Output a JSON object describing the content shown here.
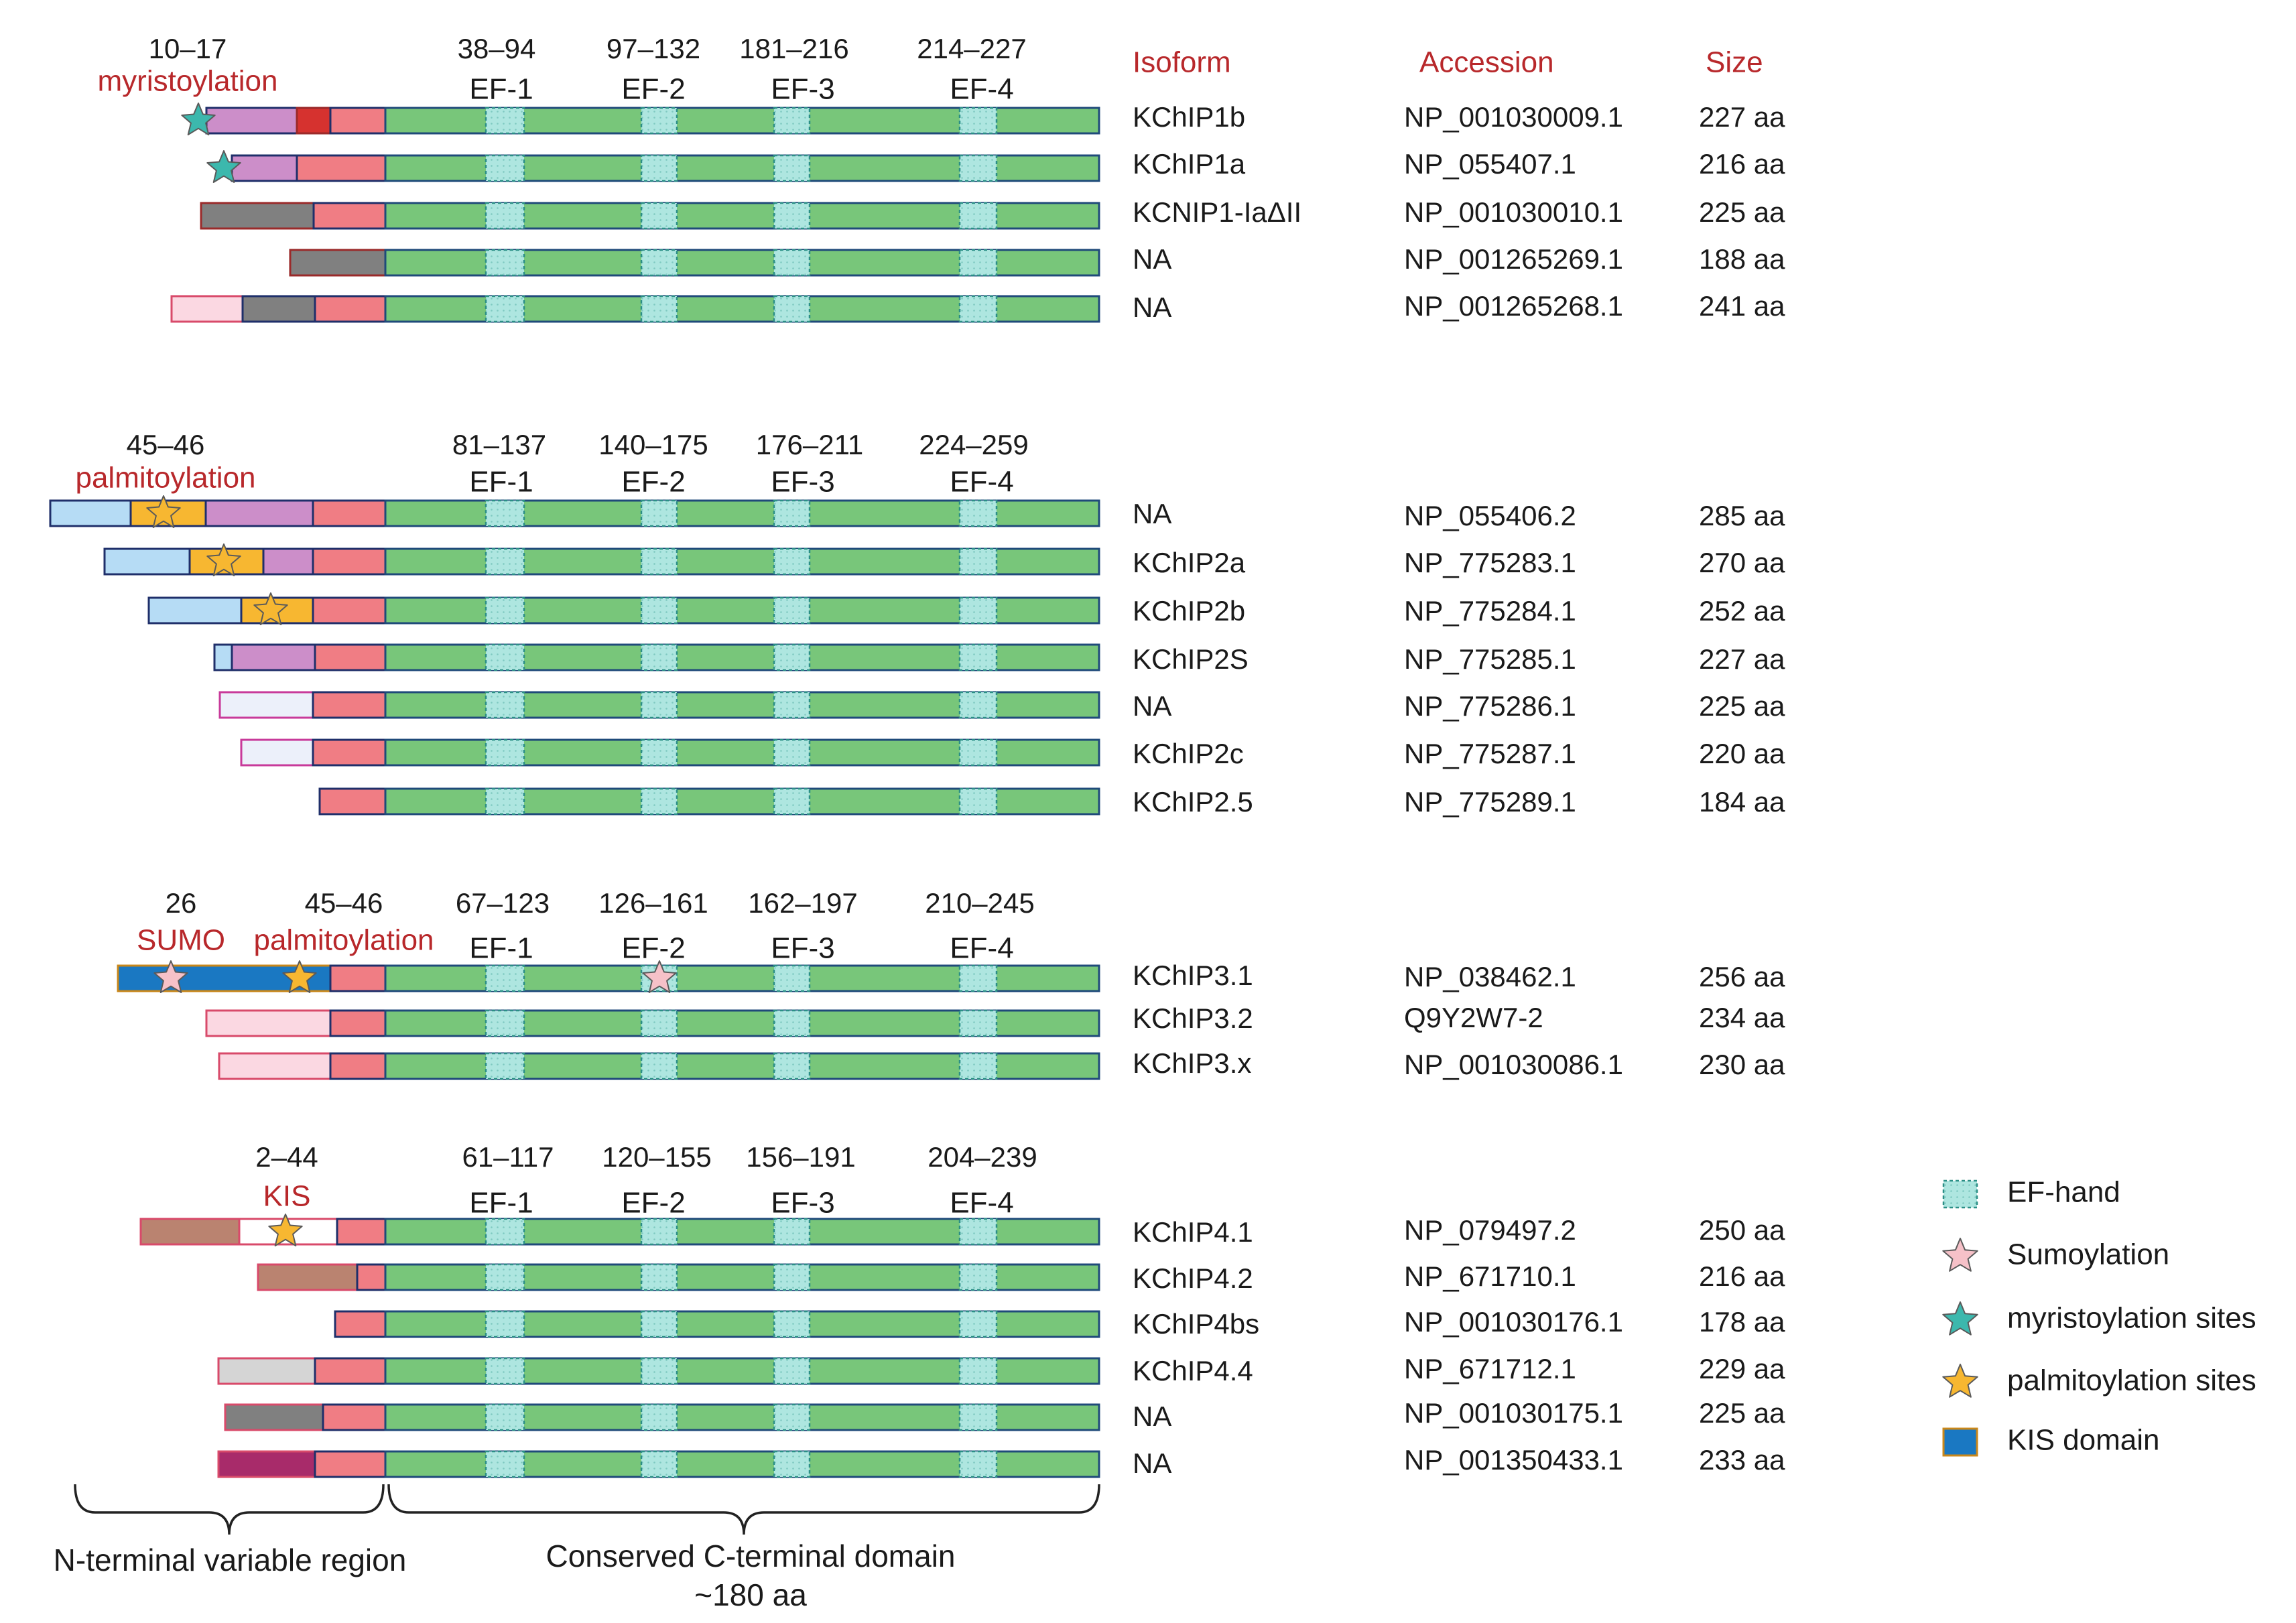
{
  "colors": {
    "red_label": "#b8282b",
    "text": "#1a1a1a",
    "green": "#78c67a",
    "ef_hand": "#aee6e0",
    "outline": "#1f4a7a",
    "salmon": "#f07d84",
    "teal_star": "#3cb8ad",
    "orange_star": "#f7b731",
    "pink_star": "#f6c1c8",
    "kis_blue": "#1a78c2",
    "mauve": "#cc8ec9",
    "red_small": "#d6322f",
    "gray": "#808080",
    "light_pink": "#fbd8e2",
    "light_blue": "#b6dcf5",
    "pale_lavender": "#ecf0fa",
    "brown": "#ba8370",
    "light_gray": "#d5d5d5",
    "magenta": "#a82b6a"
  },
  "headers": {
    "isoform": "Isoform",
    "accession": "Accession",
    "size": "Size"
  },
  "groups": [
    {
      "ptm": [
        {
          "range": "10–17",
          "name": "myristoylation"
        }
      ],
      "ef": [
        {
          "range": "38–94",
          "name": "EF-1"
        },
        {
          "range": "97–132",
          "name": "EF-2"
        },
        {
          "range": "181–216",
          "name": "EF-3"
        },
        {
          "range": "214–227",
          "name": "EF-4"
        }
      ],
      "rows": [
        {
          "isoform": "KChIP1b",
          "accession": "NP_001030009.1",
          "size": "227 aa"
        },
        {
          "isoform": "KChIP1a",
          "accession": "NP_055407.1",
          "size": "216 aa"
        },
        {
          "isoform": "KCNIP1-IaΔII",
          "accession": "NP_001030010.1",
          "size": "225 aa"
        },
        {
          "isoform": "NA",
          "accession": "NP_001265269.1",
          "size": "188 aa"
        },
        {
          "isoform": "NA",
          "accession": "NP_001265268.1",
          "size": "241 aa"
        }
      ]
    },
    {
      "ptm": [
        {
          "range": "45–46",
          "name": "palmitoylation"
        }
      ],
      "ef": [
        {
          "range": "81–137",
          "name": "EF-1"
        },
        {
          "range": "140–175",
          "name": "EF-2"
        },
        {
          "range": "176–211",
          "name": "EF-3"
        },
        {
          "range": "224–259",
          "name": "EF-4"
        }
      ],
      "rows": [
        {
          "isoform": "NA",
          "accession": "NP_055406.2",
          "size": "285 aa"
        },
        {
          "isoform": "KChIP2a",
          "accession": "NP_775283.1",
          "size": "270 aa"
        },
        {
          "isoform": "KChIP2b",
          "accession": "NP_775284.1",
          "size": "252 aa"
        },
        {
          "isoform": "KChIP2S",
          "accession": "NP_775285.1",
          "size": "227 aa"
        },
        {
          "isoform": "NA",
          "accession": "NP_775286.1",
          "size": "225 aa"
        },
        {
          "isoform": "KChIP2c",
          "accession": "NP_775287.1",
          "size": "220 aa"
        },
        {
          "isoform": "KChIP2.5",
          "accession": "NP_775289.1",
          "size": "184 aa"
        }
      ]
    },
    {
      "ptm": [
        {
          "range": "26",
          "name": "SUMO"
        },
        {
          "range": "45–46",
          "name": "palmitoylation"
        }
      ],
      "ef": [
        {
          "range": "67–123",
          "name": "EF-1"
        },
        {
          "range": "126–161",
          "name": "EF-2"
        },
        {
          "range": "162–197",
          "name": "EF-3"
        },
        {
          "range": "210–245",
          "name": "EF-4"
        }
      ],
      "rows": [
        {
          "isoform": "KChIP3.1",
          "accession": "NP_038462.1",
          "size": "256 aa"
        },
        {
          "isoform": "KChIP3.2",
          "accession": "Q9Y2W7-2",
          "size": "234 aa"
        },
        {
          "isoform": "KChIP3.x",
          "accession": "NP_001030086.1",
          "size": "230 aa"
        }
      ]
    },
    {
      "ptm": [
        {
          "range": "2–44",
          "name": "KIS"
        }
      ],
      "ef": [
        {
          "range": "61–117",
          "name": "EF-1"
        },
        {
          "range": "120–155",
          "name": "EF-2"
        },
        {
          "range": "156–191",
          "name": "EF-3"
        },
        {
          "range": "204–239",
          "name": "EF-4"
        }
      ],
      "rows": [
        {
          "isoform": "KChIP4.1",
          "accession": "NP_079497.2",
          "size": "250 aa"
        },
        {
          "isoform": "KChIP4.2",
          "accession": "NP_671710.1",
          "size": "216 aa"
        },
        {
          "isoform": "KChIP4bs",
          "accession": "NP_001030176.1",
          "size": "178 aa"
        },
        {
          "isoform": "KChIP4.4",
          "accession": "NP_671712.1",
          "size": "229 aa"
        },
        {
          "isoform": "NA",
          "accession": "NP_001030175.1",
          "size": "225 aa"
        },
        {
          "isoform": "NA",
          "accession": "NP_001350433.1",
          "size": "233 aa"
        }
      ]
    }
  ],
  "legend": [
    {
      "label": "EF-hand",
      "icon": "ef-hand-swatch"
    },
    {
      "label": "Sumoylation",
      "icon": "pink-star-icon"
    },
    {
      "label": "myristoylation sites",
      "icon": "teal-star-icon"
    },
    {
      "label": "palmitoylation sites",
      "icon": "orange-star-icon"
    },
    {
      "label": "KIS domain",
      "icon": "kis-swatch"
    }
  ],
  "braces": {
    "n_terminal": "N-terminal variable region",
    "c_terminal_line1": "Conserved C-terminal domain",
    "c_terminal_line2": "~180 aa"
  }
}
